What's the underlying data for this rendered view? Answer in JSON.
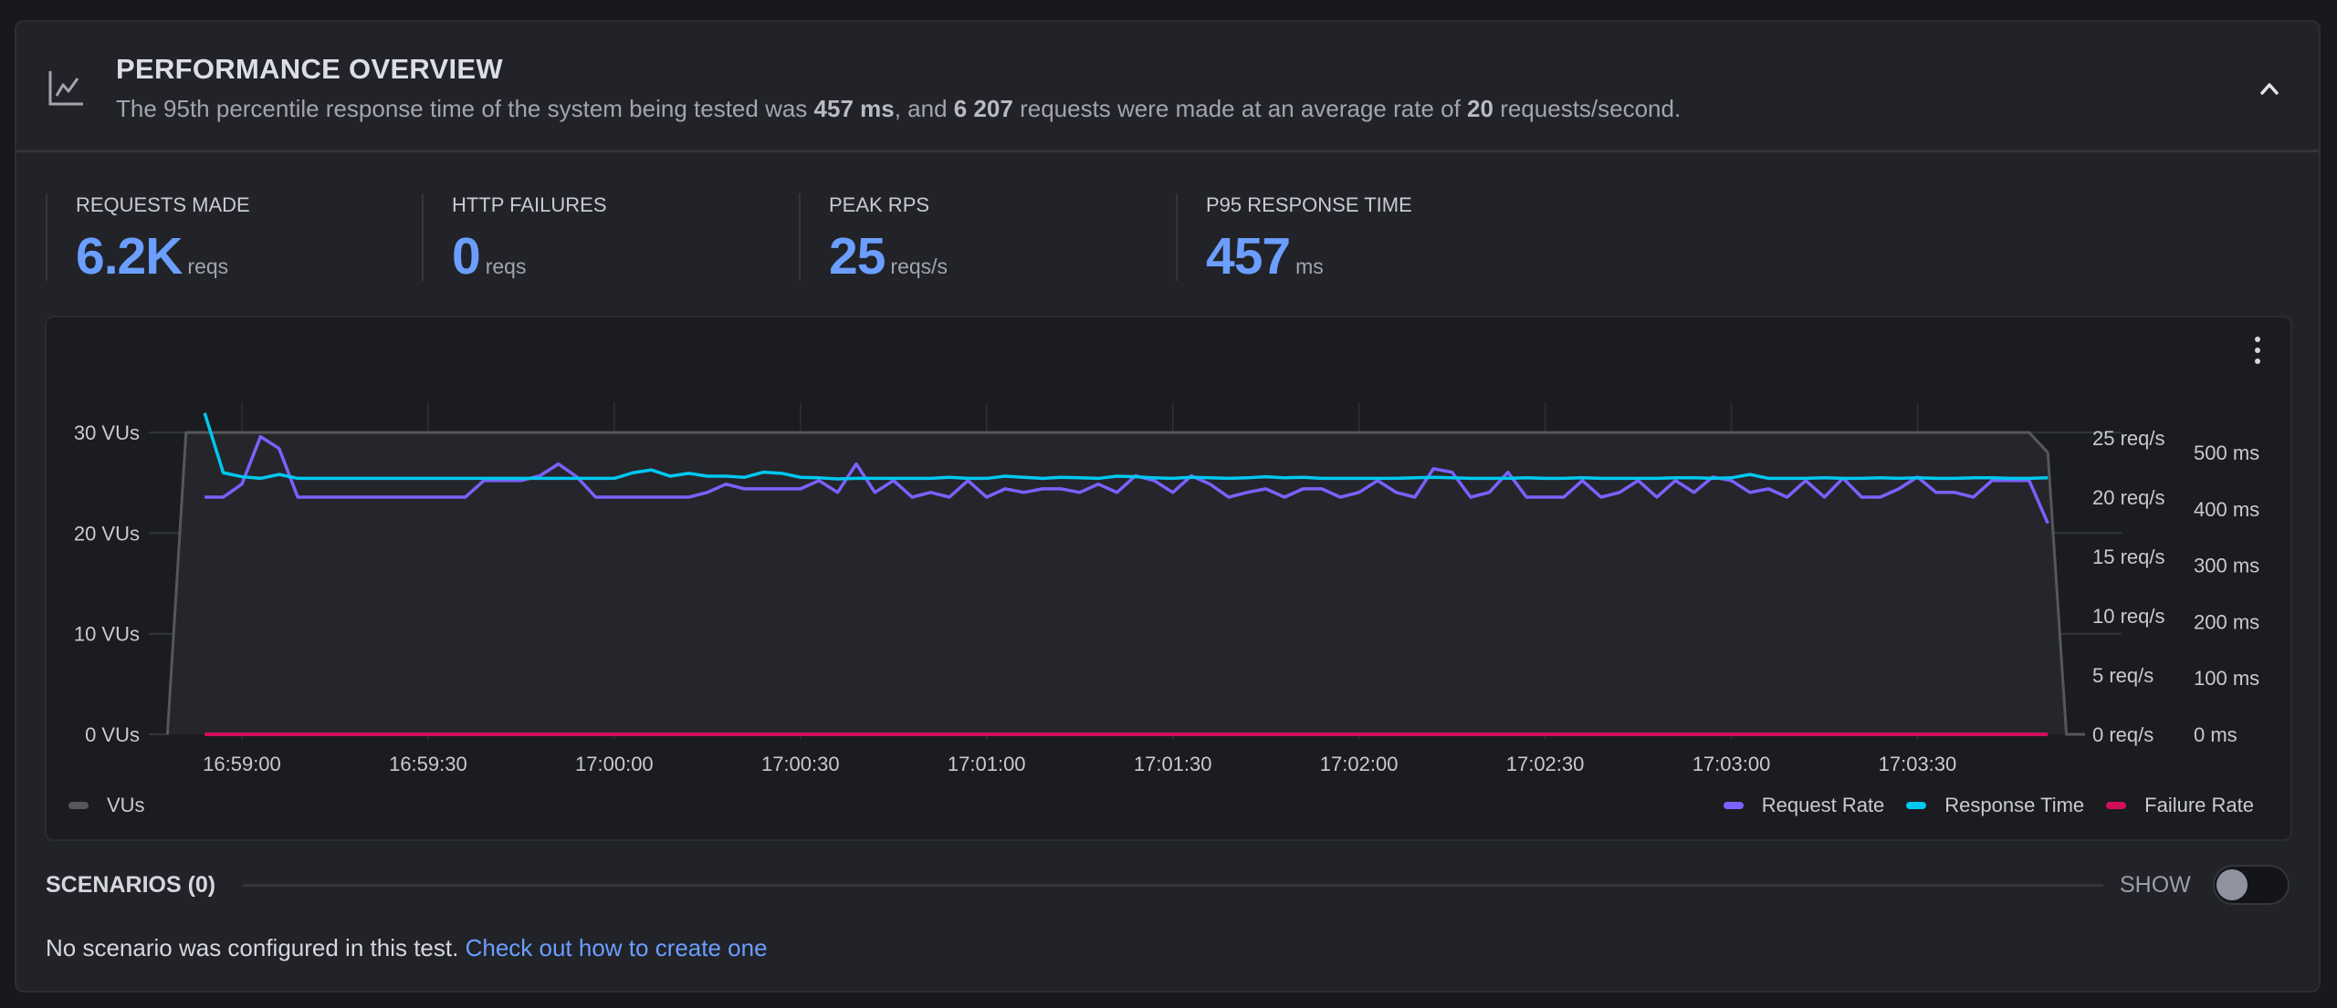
{
  "header": {
    "title": "PERFORMANCE OVERVIEW",
    "subtitle_parts": [
      "The 95th percentile response time of the system being tested was ",
      "457 ms",
      ", and ",
      "6 207",
      " requests were made at an average rate of ",
      "20",
      " requests/second."
    ],
    "icon": "line-chart-icon",
    "collapse_icon": "chevron-up-icon"
  },
  "stats": [
    {
      "label": "REQUESTS MADE",
      "value": "6.2K",
      "unit": "reqs"
    },
    {
      "label": "HTTP FAILURES",
      "value": "0",
      "unit": "reqs"
    },
    {
      "label": "PEAK RPS",
      "value": "25",
      "unit": "reqs/s"
    },
    {
      "label": "P95 RESPONSE TIME",
      "value": "457",
      "unit": "ms"
    }
  ],
  "colors": {
    "accent": "#6b9eff",
    "vus": "#55575d",
    "request_rate": "#7b61ff",
    "response_time": "#00c8f0",
    "failure_rate": "#d10e5c"
  },
  "chart_data": {
    "type": "line",
    "grid": true,
    "legend_placement": "bottom",
    "xlim": [
      "16:58:45",
      "17:03:57"
    ],
    "x_ticks": [
      "16:59:00",
      "16:59:30",
      "17:00:00",
      "17:00:30",
      "17:01:00",
      "17:01:30",
      "17:02:00",
      "17:02:30",
      "17:03:00",
      "17:03:30"
    ],
    "y_left": {
      "ticks": [
        0,
        10,
        20,
        30
      ],
      "tick_labels": [
        "0 VUs",
        "10 VUs",
        "20 VUs",
        "30 VUs"
      ],
      "ylim": [
        0,
        33
      ]
    },
    "y_right_rate": {
      "ticks": [
        0,
        5,
        10,
        15,
        20,
        25
      ],
      "tick_labels": [
        "0 req/s",
        "5 req/s",
        "10 req/s",
        "15 req/s",
        "20 req/s",
        "25 req/s"
      ],
      "ylim": [
        0,
        28
      ]
    },
    "y_right_ms": {
      "ticks": [
        0,
        100,
        200,
        300,
        400,
        500
      ],
      "tick_labels": [
        "0 ms",
        "100 ms",
        "200 ms",
        "300 ms",
        "400 ms",
        "500 ms"
      ],
      "ylim": [
        0,
        589
      ]
    },
    "vus": {
      "name": "VUs",
      "axis": "left",
      "x": [
        "16:58:48",
        "16:58:51",
        "17:03:48",
        "17:03:51",
        "17:03:54",
        "17:03:57"
      ],
      "values": [
        0,
        30,
        30,
        28,
        0,
        0
      ]
    },
    "x": [
      "16:58:54",
      "16:58:57",
      "16:59:00",
      "16:59:03",
      "16:59:06",
      "16:59:09",
      "16:59:12",
      "16:59:15",
      "16:59:18",
      "16:59:21",
      "16:59:24",
      "16:59:27",
      "16:59:30",
      "16:59:33",
      "16:59:36",
      "16:59:39",
      "16:59:42",
      "16:59:45",
      "16:59:48",
      "16:59:51",
      "16:59:54",
      "16:59:57",
      "17:00:00",
      "17:00:03",
      "17:00:06",
      "17:00:09",
      "17:00:12",
      "17:00:15",
      "17:00:18",
      "17:00:21",
      "17:00:24",
      "17:00:27",
      "17:00:30",
      "17:00:33",
      "17:00:36",
      "17:00:39",
      "17:00:42",
      "17:00:45",
      "17:00:48",
      "17:00:51",
      "17:00:54",
      "17:00:57",
      "17:01:00",
      "17:01:03",
      "17:01:06",
      "17:01:09",
      "17:01:12",
      "17:01:15",
      "17:01:18",
      "17:01:21",
      "17:01:24",
      "17:01:27",
      "17:01:30",
      "17:01:33",
      "17:01:36",
      "17:01:39",
      "17:01:42",
      "17:01:45",
      "17:01:48",
      "17:01:51",
      "17:01:54",
      "17:01:57",
      "17:02:00",
      "17:02:03",
      "17:02:06",
      "17:02:09",
      "17:02:12",
      "17:02:15",
      "17:02:18",
      "17:02:21",
      "17:02:24",
      "17:02:27",
      "17:02:30",
      "17:02:33",
      "17:02:36",
      "17:02:39",
      "17:02:42",
      "17:02:45",
      "17:02:48",
      "17:02:51",
      "17:02:54",
      "17:02:57",
      "17:03:00",
      "17:03:03",
      "17:03:06",
      "17:03:09",
      "17:03:12",
      "17:03:15",
      "17:03:18",
      "17:03:21",
      "17:03:24",
      "17:03:27",
      "17:03:30",
      "17:03:33",
      "17:03:36",
      "17:03:39",
      "17:03:42",
      "17:03:45",
      "17:03:48",
      "17:03:51"
    ],
    "series": [
      {
        "name": "Request Rate",
        "axis": "rate",
        "values": [
          20.0,
          20.0,
          21.1,
          25.1,
          24.1,
          20.0,
          20.0,
          20.0,
          20.0,
          20.0,
          20.0,
          20.0,
          20.0,
          20.0,
          20.0,
          21.4,
          21.4,
          21.4,
          21.8,
          22.8,
          21.7,
          20.0,
          20.0,
          20.0,
          20.0,
          20.0,
          20.0,
          20.4,
          21.1,
          20.7,
          20.7,
          20.7,
          20.7,
          21.4,
          20.4,
          22.8,
          20.4,
          21.4,
          20.0,
          20.4,
          20.0,
          21.4,
          20.0,
          20.7,
          20.4,
          20.7,
          20.7,
          20.4,
          21.1,
          20.4,
          21.8,
          21.4,
          20.4,
          21.8,
          21.1,
          20.0,
          20.4,
          20.7,
          20.0,
          20.7,
          20.7,
          20.0,
          20.4,
          21.4,
          20.4,
          20.0,
          22.4,
          22.1,
          20.0,
          20.4,
          22.1,
          20.0,
          20.0,
          20.0,
          21.4,
          20.0,
          20.4,
          21.4,
          20.0,
          21.4,
          20.4,
          21.7,
          21.4,
          20.4,
          20.7,
          20.0,
          21.4,
          20.0,
          21.6,
          20.0,
          20.0,
          20.7,
          21.7,
          20.4,
          20.4,
          20.0,
          21.4,
          21.4,
          21.4,
          17.8
        ]
      },
      {
        "name": "Response Time",
        "axis": "ms",
        "values": [
          570,
          464,
          457,
          454,
          461,
          454,
          454,
          454,
          454,
          454,
          454,
          454,
          454,
          454,
          454,
          454,
          454,
          454,
          454,
          454,
          454,
          454,
          454,
          464,
          469,
          458,
          463,
          458,
          458,
          456,
          465,
          463,
          456,
          455,
          453,
          454,
          454,
          454,
          454,
          454,
          456,
          454,
          454,
          458,
          456,
          454,
          456,
          455,
          454,
          458,
          457,
          455,
          454,
          456,
          455,
          454,
          455,
          457,
          455,
          456,
          454,
          454,
          454,
          454,
          454,
          455,
          456,
          455,
          454,
          454,
          454,
          455,
          454,
          454,
          455,
          454,
          454,
          454,
          454,
          455,
          455,
          454,
          455,
          461,
          454,
          454,
          454,
          455,
          454,
          454,
          455,
          454,
          455,
          454,
          454,
          455,
          455,
          454,
          454,
          455
        ]
      },
      {
        "name": "Failure Rate",
        "axis": "rate",
        "values": [
          0,
          0,
          0,
          0,
          0,
          0,
          0,
          0,
          0,
          0,
          0,
          0,
          0,
          0,
          0,
          0,
          0,
          0,
          0,
          0,
          0,
          0,
          0,
          0,
          0,
          0,
          0,
          0,
          0,
          0,
          0,
          0,
          0,
          0,
          0,
          0,
          0,
          0,
          0,
          0,
          0,
          0,
          0,
          0,
          0,
          0,
          0,
          0,
          0,
          0,
          0,
          0,
          0,
          0,
          0,
          0,
          0,
          0,
          0,
          0,
          0,
          0,
          0,
          0,
          0,
          0,
          0,
          0,
          0,
          0,
          0,
          0,
          0,
          0,
          0,
          0,
          0,
          0,
          0,
          0,
          0,
          0,
          0,
          0,
          0,
          0,
          0,
          0,
          0,
          0,
          0,
          0,
          0,
          0,
          0,
          0,
          0,
          0,
          0,
          0
        ]
      }
    ]
  },
  "chart": {
    "menu_icon": "kebab-menu-icon"
  },
  "scenarios": {
    "title": "SCENARIOS (0)",
    "toggle_label": "SHOW",
    "toggle_on": false,
    "empty_text": "No scenario was configured in this test.",
    "link_text": "Check out how to create one"
  }
}
